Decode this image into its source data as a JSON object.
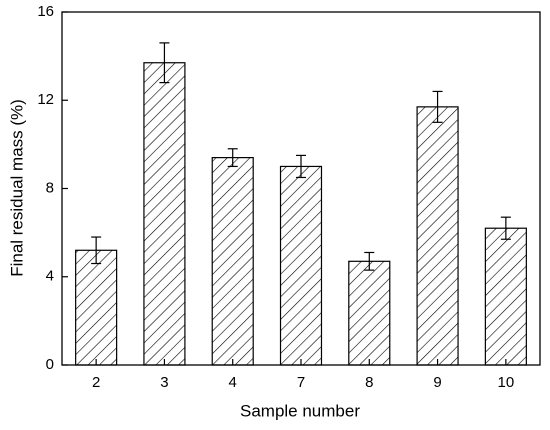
{
  "chart_data": {
    "type": "bar",
    "x_label": "Sample number",
    "y_label": "Final residual mass (%)",
    "categories": [
      "2",
      "3",
      "4",
      "7",
      "8",
      "9",
      "10"
    ],
    "values": [
      5.2,
      13.7,
      9.4,
      9.0,
      4.7,
      11.7,
      6.2
    ],
    "errors": [
      0.6,
      0.9,
      0.4,
      0.5,
      0.4,
      0.7,
      0.5
    ],
    "color": "#000000",
    "ylim": [
      0,
      16
    ],
    "yticks": [
      0,
      4,
      8,
      12,
      16
    ],
    "grid": false
  }
}
